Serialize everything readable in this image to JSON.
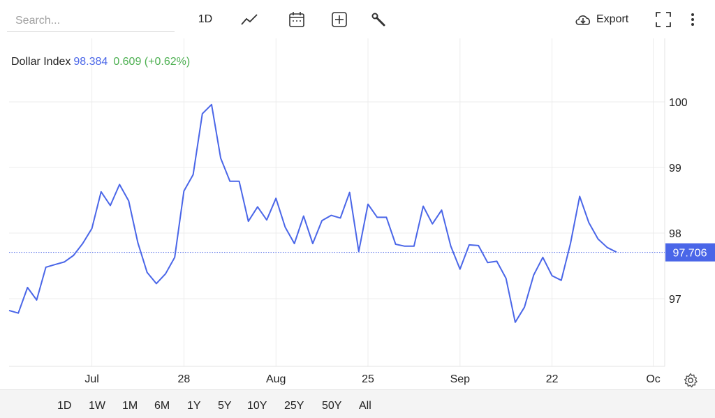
{
  "toolbar": {
    "search_placeholder": "Search...",
    "interval_label": "1D",
    "export_label": "Export",
    "icons": [
      "line-chart-icon",
      "calendar-icon",
      "add-indicator-icon",
      "wrench-icon",
      "cloud-download-icon",
      "fullscreen-icon",
      "more-vertical-icon"
    ]
  },
  "legend": {
    "name": "Dollar Index",
    "value": "98.384",
    "change": "0.609 (+0.62%)",
    "value_color": "#4a66e8",
    "change_color": "#4caf50"
  },
  "ranges": [
    "1D",
    "1W",
    "1M",
    "6M",
    "1Y",
    "5Y",
    "10Y",
    "25Y",
    "50Y",
    "All"
  ],
  "chart_data": {
    "type": "line",
    "series": [
      {
        "color": "#4a66e8",
        "values": [
          96.82,
          96.78,
          97.17,
          96.98,
          97.48,
          97.52,
          97.56,
          97.66,
          97.84,
          98.07,
          98.63,
          98.42,
          98.74,
          98.49,
          97.85,
          97.4,
          97.23,
          97.38,
          97.63,
          98.64,
          98.89,
          99.82,
          99.96,
          99.14,
          98.79,
          98.79,
          98.18,
          98.4,
          98.2,
          98.53,
          98.09,
          97.84,
          98.26,
          97.84,
          98.19,
          98.27,
          98.23,
          98.62,
          97.72,
          98.44,
          98.24,
          98.24,
          97.83,
          97.8,
          97.8,
          98.41,
          98.14,
          98.35,
          97.8,
          97.45,
          97.82,
          97.81,
          97.55,
          97.57,
          97.31,
          96.64,
          96.87,
          97.36,
          97.63,
          97.35,
          97.28,
          97.84,
          98.56,
          98.16,
          97.91,
          97.78,
          97.71
        ]
      }
    ],
    "x_ticks": [
      {
        "index": 9,
        "label": "Jul"
      },
      {
        "index": 19,
        "label": "28"
      },
      {
        "index": 29,
        "label": "Aug"
      },
      {
        "index": 39,
        "label": "25"
      },
      {
        "index": 49,
        "label": "Sep"
      },
      {
        "index": 59,
        "label": "22"
      },
      {
        "index": 70,
        "label": "Oc"
      }
    ],
    "y_ticks": [
      97,
      98,
      99,
      100
    ],
    "ylim": [
      96.0,
      101.0
    ],
    "last_value": 97.706,
    "last_value_label": "97.706",
    "grid": true
  }
}
